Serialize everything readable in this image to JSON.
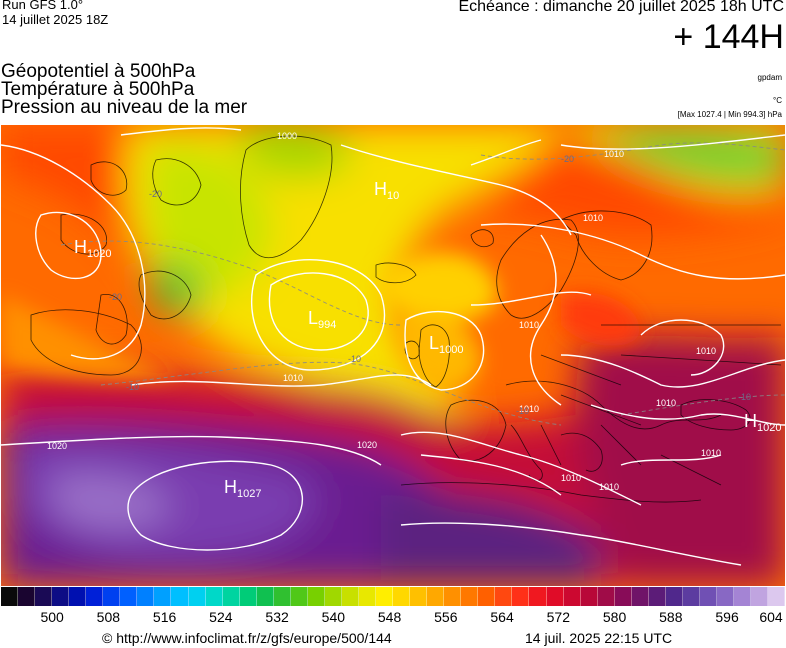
{
  "header": {
    "run": "Run GFS 1.0°",
    "run_date": "14 juillet 2025 18Z",
    "echeance": "Echéance : dimanche 20 juillet 2025 18h UTC",
    "lead_time": "+ 144H"
  },
  "titles": {
    "line1": "Géopotentiel à 500hPa",
    "line2": "Température à 500hPa",
    "line3": "Pression au niveau de la mer"
  },
  "units": {
    "geopotential": "gpdam",
    "temperature": "°C",
    "pressure_range": "[Max 1027.4 | Min 994.3] hPa"
  },
  "map_labels": {
    "pressure_centers": [
      {
        "letter": "H",
        "value": "1020"
      },
      {
        "letter": "H",
        "value": "10"
      },
      {
        "letter": "L",
        "value": "994"
      },
      {
        "letter": "L",
        "value": "1000"
      },
      {
        "letter": "H",
        "value": "1027"
      },
      {
        "letter": "H",
        "value": "1020"
      }
    ],
    "isobars": [
      "1000",
      "1010",
      "1010",
      "1020",
      "1020",
      "1010",
      "1010",
      "1010",
      "1010",
      "1010",
      "1010",
      "1010",
      "1010"
    ],
    "isotherms": [
      "-20",
      "-20",
      "-20",
      "-10",
      "-10",
      "-10",
      "-10"
    ]
  },
  "colorbar": {
    "tick_labels": [
      "500",
      "508",
      "516",
      "524",
      "532",
      "540",
      "548",
      "556",
      "564",
      "572",
      "580",
      "588",
      "596",
      "604"
    ],
    "colors": [
      "#0a0a0a",
      "#1a0530",
      "#1a0a55",
      "#0d0d85",
      "#0010b0",
      "#0020d8",
      "#0040f0",
      "#0060ff",
      "#0080ff",
      "#00a0ff",
      "#00bfff",
      "#00d0f0",
      "#00d8c8",
      "#00d4a0",
      "#00cc78",
      "#10c050",
      "#30c030",
      "#50c818",
      "#78d000",
      "#a0d800",
      "#c8e000",
      "#e8e800",
      "#ffee00",
      "#ffd800",
      "#ffc000",
      "#ffa800",
      "#ff9000",
      "#ff7800",
      "#ff6000",
      "#ff4810",
      "#ff3018",
      "#f01820",
      "#e00c28",
      "#cc0830",
      "#b80838",
      "#a00c48",
      "#880c58",
      "#701468",
      "#5c1c78",
      "#50288c",
      "#5c3ca0",
      "#7050b4",
      "#8868c4",
      "#a484d4",
      "#c0a4e0",
      "#dcc8ee"
    ]
  },
  "footer": {
    "url": "© http://www.infoclimat.fr/z/gfs/europe/500/144",
    "timestamp": "14 juil. 2025 22:15 UTC"
  }
}
